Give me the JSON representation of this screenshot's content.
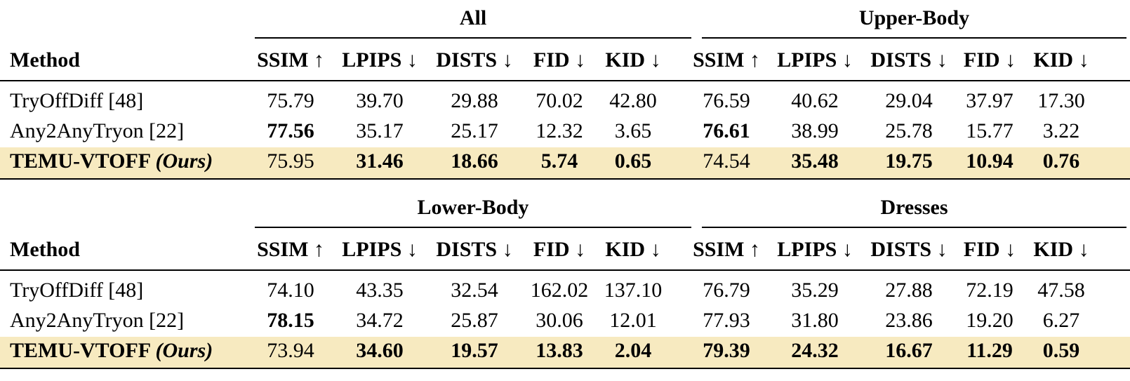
{
  "columns": [
    "SSIM ↑",
    "LPIPS ↓",
    "DISTS ↓",
    "FID ↓",
    "KID ↓"
  ],
  "method_header": "Method",
  "blocks": [
    {
      "groups": [
        "All",
        "Upper-Body"
      ],
      "rows": [
        {
          "method": "TryOffDiff [48]",
          "suffix": "",
          "highlight": false,
          "values": [
            "75.79",
            "39.70",
            "29.88",
            "70.02",
            "42.80",
            "76.59",
            "40.62",
            "29.04",
            "37.97",
            "17.30"
          ],
          "bold": [
            false,
            false,
            false,
            false,
            false,
            false,
            false,
            false,
            false,
            false
          ]
        },
        {
          "method": "Any2AnyTryon [22]",
          "suffix": "",
          "highlight": false,
          "values": [
            "77.56",
            "35.17",
            "25.17",
            "12.32",
            "3.65",
            "76.61",
            "38.99",
            "25.78",
            "15.77",
            "3.22"
          ],
          "bold": [
            true,
            false,
            false,
            false,
            false,
            true,
            false,
            false,
            false,
            false
          ]
        },
        {
          "method": "TEMU-VTOFF",
          "suffix": "(Ours)",
          "highlight": true,
          "values": [
            "75.95",
            "31.46",
            "18.66",
            "5.74",
            "0.65",
            "74.54",
            "35.48",
            "19.75",
            "10.94",
            "0.76"
          ],
          "bold": [
            false,
            true,
            true,
            true,
            true,
            false,
            true,
            true,
            true,
            true
          ]
        }
      ]
    },
    {
      "groups": [
        "Lower-Body",
        "Dresses"
      ],
      "rows": [
        {
          "method": "TryOffDiff [48]",
          "suffix": "",
          "highlight": false,
          "values": [
            "74.10",
            "43.35",
            "32.54",
            "162.02",
            "137.10",
            "76.79",
            "35.29",
            "27.88",
            "72.19",
            "47.58"
          ],
          "bold": [
            false,
            false,
            false,
            false,
            false,
            false,
            false,
            false,
            false,
            false
          ]
        },
        {
          "method": "Any2AnyTryon [22]",
          "suffix": "",
          "highlight": false,
          "values": [
            "78.15",
            "34.72",
            "25.87",
            "30.06",
            "12.01",
            "77.93",
            "31.80",
            "23.86",
            "19.20",
            "6.27"
          ],
          "bold": [
            true,
            false,
            false,
            false,
            false,
            false,
            false,
            false,
            false,
            false
          ]
        },
        {
          "method": "TEMU-VTOFF",
          "suffix": "(Ours)",
          "highlight": true,
          "values": [
            "73.94",
            "34.60",
            "19.57",
            "13.83",
            "2.04",
            "79.39",
            "24.32",
            "16.67",
            "11.29",
            "0.59"
          ],
          "bold": [
            false,
            true,
            true,
            true,
            true,
            true,
            true,
            true,
            true,
            true
          ]
        }
      ]
    }
  ]
}
